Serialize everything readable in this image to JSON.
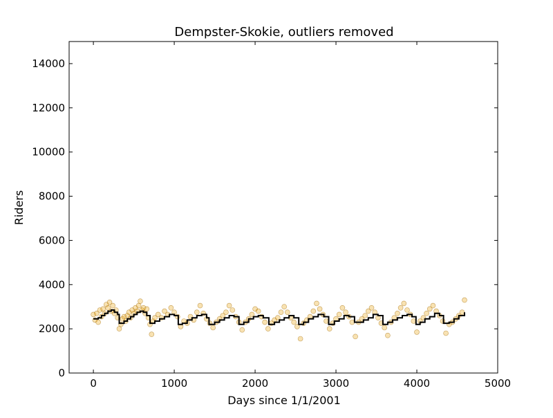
{
  "chart_data": {
    "type": "scatter",
    "title": "Dempster-Skokie, outliers removed",
    "xlabel": "Days since 1/1/2001",
    "ylabel": "Riders",
    "xlim": [
      -300,
      5000
    ],
    "ylim": [
      0,
      15000
    ],
    "xticks": [
      0,
      1000,
      2000,
      3000,
      4000,
      5000
    ],
    "yticks": [
      0,
      2000,
      4000,
      6000,
      8000,
      10000,
      12000,
      14000
    ],
    "grid": false,
    "legend": "none",
    "series": [
      {
        "kind": "scatter",
        "color": "#e8a000",
        "edge_color": "#a06800",
        "opacity": 0.3,
        "points": [
          [
            0,
            2650
          ],
          [
            20,
            2400
          ],
          [
            40,
            2700
          ],
          [
            60,
            2300
          ],
          [
            80,
            2850
          ],
          [
            100,
            2550
          ],
          [
            120,
            2900
          ],
          [
            140,
            2700
          ],
          [
            160,
            3100
          ],
          [
            180,
            2950
          ],
          [
            200,
            3200
          ],
          [
            220,
            2800
          ],
          [
            240,
            3050
          ],
          [
            260,
            2700
          ],
          [
            280,
            2850
          ],
          [
            300,
            2500
          ],
          [
            320,
            2000
          ],
          [
            340,
            2200
          ],
          [
            360,
            2450
          ],
          [
            380,
            2550
          ],
          [
            400,
            2350
          ],
          [
            420,
            2600
          ],
          [
            440,
            2750
          ],
          [
            460,
            2500
          ],
          [
            480,
            2850
          ],
          [
            500,
            2700
          ],
          [
            520,
            2950
          ],
          [
            540,
            2800
          ],
          [
            560,
            3050
          ],
          [
            580,
            3250
          ],
          [
            600,
            2850
          ],
          [
            620,
            2950
          ],
          [
            640,
            2700
          ],
          [
            660,
            2900
          ],
          [
            680,
            2500
          ],
          [
            700,
            2200
          ],
          [
            720,
            1750
          ],
          [
            740,
            2350
          ],
          [
            760,
            2500
          ],
          [
            800,
            2650
          ],
          [
            840,
            2500
          ],
          [
            880,
            2800
          ],
          [
            920,
            2650
          ],
          [
            960,
            2950
          ],
          [
            1000,
            2750
          ],
          [
            1040,
            2550
          ],
          [
            1080,
            2100
          ],
          [
            1120,
            2350
          ],
          [
            1160,
            2250
          ],
          [
            1200,
            2550
          ],
          [
            1240,
            2400
          ],
          [
            1280,
            2750
          ],
          [
            1320,
            3050
          ],
          [
            1360,
            2700
          ],
          [
            1400,
            2450
          ],
          [
            1440,
            2250
          ],
          [
            1480,
            2050
          ],
          [
            1520,
            2300
          ],
          [
            1560,
            2450
          ],
          [
            1600,
            2600
          ],
          [
            1640,
            2750
          ],
          [
            1680,
            3050
          ],
          [
            1720,
            2850
          ],
          [
            1760,
            2550
          ],
          [
            1800,
            2300
          ],
          [
            1840,
            1950
          ],
          [
            1880,
            2300
          ],
          [
            1920,
            2450
          ],
          [
            1960,
            2650
          ],
          [
            2000,
            2900
          ],
          [
            2040,
            2800
          ],
          [
            2080,
            2550
          ],
          [
            2120,
            2300
          ],
          [
            2160,
            2000
          ],
          [
            2200,
            2250
          ],
          [
            2240,
            2400
          ],
          [
            2280,
            2500
          ],
          [
            2320,
            2750
          ],
          [
            2360,
            3000
          ],
          [
            2400,
            2750
          ],
          [
            2440,
            2500
          ],
          [
            2480,
            2300
          ],
          [
            2520,
            2100
          ],
          [
            2560,
            1550
          ],
          [
            2600,
            2250
          ],
          [
            2640,
            2400
          ],
          [
            2680,
            2550
          ],
          [
            2720,
            2800
          ],
          [
            2760,
            3150
          ],
          [
            2800,
            2900
          ],
          [
            2840,
            2650
          ],
          [
            2880,
            2350
          ],
          [
            2920,
            2000
          ],
          [
            2960,
            2250
          ],
          [
            3000,
            2450
          ],
          [
            3040,
            2650
          ],
          [
            3080,
            2950
          ],
          [
            3120,
            2750
          ],
          [
            3160,
            2550
          ],
          [
            3200,
            2300
          ],
          [
            3240,
            1650
          ],
          [
            3280,
            2300
          ],
          [
            3320,
            2450
          ],
          [
            3360,
            2600
          ],
          [
            3400,
            2800
          ],
          [
            3440,
            2950
          ],
          [
            3480,
            2750
          ],
          [
            3520,
            2500
          ],
          [
            3560,
            2250
          ],
          [
            3600,
            2050
          ],
          [
            3640,
            1700
          ],
          [
            3680,
            2300
          ],
          [
            3720,
            2500
          ],
          [
            3760,
            2700
          ],
          [
            3800,
            2950
          ],
          [
            3840,
            3150
          ],
          [
            3880,
            2850
          ],
          [
            3920,
            2650
          ],
          [
            3960,
            2350
          ],
          [
            4000,
            1850
          ],
          [
            4040,
            2350
          ],
          [
            4080,
            2500
          ],
          [
            4120,
            2700
          ],
          [
            4160,
            2900
          ],
          [
            4200,
            3050
          ],
          [
            4240,
            2800
          ],
          [
            4280,
            2600
          ],
          [
            4320,
            2350
          ],
          [
            4360,
            1800
          ],
          [
            4400,
            2200
          ],
          [
            4440,
            2300
          ],
          [
            4480,
            2450
          ],
          [
            4520,
            2600
          ],
          [
            4560,
            2750
          ],
          [
            4590,
            3300
          ]
        ]
      },
      {
        "kind": "step",
        "color": "#000000",
        "points": [
          [
            0,
            2450
          ],
          [
            60,
            2500
          ],
          [
            100,
            2600
          ],
          [
            140,
            2700
          ],
          [
            180,
            2800
          ],
          [
            220,
            2850
          ],
          [
            260,
            2750
          ],
          [
            300,
            2650
          ],
          [
            320,
            2250
          ],
          [
            380,
            2350
          ],
          [
            420,
            2450
          ],
          [
            460,
            2550
          ],
          [
            500,
            2650
          ],
          [
            540,
            2750
          ],
          [
            580,
            2800
          ],
          [
            620,
            2750
          ],
          [
            660,
            2600
          ],
          [
            700,
            2250
          ],
          [
            760,
            2350
          ],
          [
            820,
            2450
          ],
          [
            880,
            2550
          ],
          [
            940,
            2650
          ],
          [
            1000,
            2600
          ],
          [
            1050,
            2200
          ],
          [
            1100,
            2250
          ],
          [
            1160,
            2400
          ],
          [
            1220,
            2500
          ],
          [
            1280,
            2600
          ],
          [
            1340,
            2650
          ],
          [
            1400,
            2500
          ],
          [
            1430,
            2200
          ],
          [
            1500,
            2300
          ],
          [
            1560,
            2400
          ],
          [
            1620,
            2500
          ],
          [
            1680,
            2600
          ],
          [
            1740,
            2550
          ],
          [
            1800,
            2200
          ],
          [
            1860,
            2300
          ],
          [
            1920,
            2450
          ],
          [
            1980,
            2550
          ],
          [
            2040,
            2600
          ],
          [
            2100,
            2500
          ],
          [
            2170,
            2200
          ],
          [
            2240,
            2300
          ],
          [
            2300,
            2400
          ],
          [
            2360,
            2500
          ],
          [
            2420,
            2600
          ],
          [
            2480,
            2500
          ],
          [
            2540,
            2200
          ],
          [
            2600,
            2300
          ],
          [
            2660,
            2450
          ],
          [
            2720,
            2550
          ],
          [
            2780,
            2650
          ],
          [
            2850,
            2550
          ],
          [
            2910,
            2200
          ],
          [
            2980,
            2350
          ],
          [
            3040,
            2450
          ],
          [
            3100,
            2600
          ],
          [
            3160,
            2550
          ],
          [
            3230,
            2300
          ],
          [
            3280,
            2300
          ],
          [
            3340,
            2400
          ],
          [
            3400,
            2500
          ],
          [
            3460,
            2650
          ],
          [
            3520,
            2600
          ],
          [
            3580,
            2200
          ],
          [
            3640,
            2300
          ],
          [
            3700,
            2400
          ],
          [
            3760,
            2500
          ],
          [
            3820,
            2600
          ],
          [
            3880,
            2650
          ],
          [
            3940,
            2550
          ],
          [
            3990,
            2200
          ],
          [
            4040,
            2300
          ],
          [
            4100,
            2450
          ],
          [
            4160,
            2550
          ],
          [
            4220,
            2700
          ],
          [
            4280,
            2600
          ],
          [
            4330,
            2250
          ],
          [
            4400,
            2300
          ],
          [
            4460,
            2450
          ],
          [
            4520,
            2600
          ],
          [
            4590,
            2750
          ]
        ]
      }
    ]
  }
}
